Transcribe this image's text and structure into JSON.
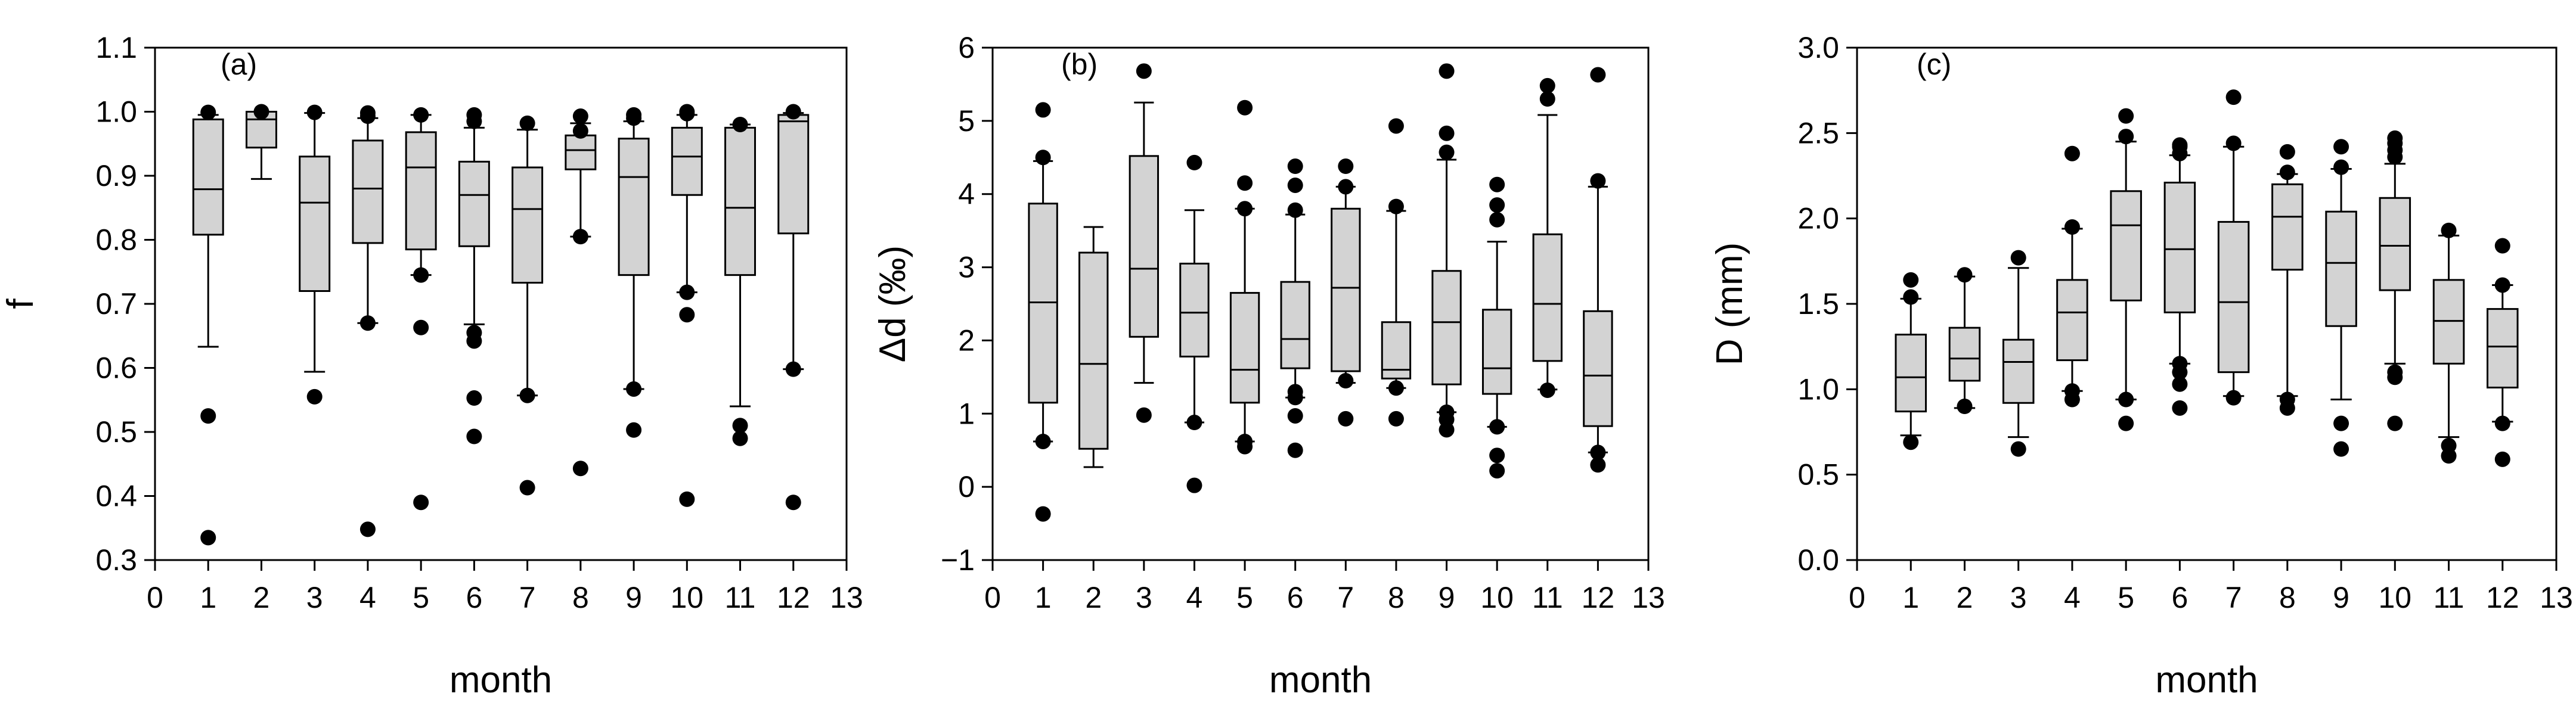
{
  "colors": {
    "box_fill": "#d3d3d3",
    "stroke": "#000000",
    "background": "#ffffff"
  },
  "chart_data": [
    {
      "type": "boxplot",
      "panel_label": "(a)",
      "xlabel": "month",
      "ylabel": "f",
      "xlim": [
        0,
        13
      ],
      "ylim": [
        0.3,
        1.1
      ],
      "x_ticks": [
        "0",
        "1",
        "2",
        "3",
        "4",
        "5",
        "6",
        "7",
        "8",
        "9",
        "10",
        "11",
        "12",
        "13"
      ],
      "y_ticks": [
        "0.3",
        "0.4",
        "0.5",
        "0.6",
        "0.7",
        "0.8",
        "0.9",
        "1.0",
        "1.1"
      ],
      "boxes": [
        {
          "x": 1,
          "whisker_low": 0.633,
          "q1": 0.808,
          "median": 0.879,
          "q3": 0.988,
          "whisker_high": 0.995,
          "outliers": [
            0.335,
            0.525,
            0.999
          ]
        },
        {
          "x": 2,
          "whisker_low": 0.895,
          "q1": 0.944,
          "median": 0.988,
          "q3": 1.0,
          "whisker_high": 1.0,
          "outliers": [
            1.0
          ]
        },
        {
          "x": 3,
          "whisker_low": 0.594,
          "q1": 0.72,
          "median": 0.858,
          "q3": 0.93,
          "whisker_high": 0.998,
          "outliers": [
            0.555,
            0.999
          ]
        },
        {
          "x": 4,
          "whisker_low": 0.67,
          "q1": 0.795,
          "median": 0.88,
          "q3": 0.955,
          "whisker_high": 0.99,
          "outliers": [
            0.348,
            0.67,
            0.993,
            0.998
          ]
        },
        {
          "x": 5,
          "whisker_low": 0.745,
          "q1": 0.785,
          "median": 0.913,
          "q3": 0.968,
          "whisker_high": 0.995,
          "outliers": [
            0.39,
            0.663,
            0.745,
            0.995
          ]
        },
        {
          "x": 6,
          "whisker_low": 0.668,
          "q1": 0.79,
          "median": 0.87,
          "q3": 0.922,
          "whisker_high": 0.975,
          "outliers": [
            0.493,
            0.553,
            0.642,
            0.655,
            0.985,
            0.995
          ]
        },
        {
          "x": 7,
          "whisker_low": 0.557,
          "q1": 0.733,
          "median": 0.848,
          "q3": 0.913,
          "whisker_high": 0.972,
          "outliers": [
            0.413,
            0.557,
            0.982
          ]
        },
        {
          "x": 8,
          "whisker_low": 0.805,
          "q1": 0.91,
          "median": 0.94,
          "q3": 0.963,
          "whisker_high": 0.982,
          "outliers": [
            0.443,
            0.805,
            0.97,
            0.993
          ]
        },
        {
          "x": 9,
          "whisker_low": 0.567,
          "q1": 0.745,
          "median": 0.898,
          "q3": 0.958,
          "whisker_high": 0.985,
          "outliers": [
            0.503,
            0.567,
            0.99,
            0.995
          ]
        },
        {
          "x": 10,
          "whisker_low": 0.718,
          "q1": 0.87,
          "median": 0.93,
          "q3": 0.975,
          "whisker_high": 0.995,
          "outliers": [
            0.395,
            0.683,
            0.718,
            0.997,
            1.0
          ]
        },
        {
          "x": 11,
          "whisker_low": 0.54,
          "q1": 0.745,
          "median": 0.85,
          "q3": 0.975,
          "whisker_high": 0.98,
          "outliers": [
            0.49,
            0.51,
            0.98
          ]
        },
        {
          "x": 12,
          "whisker_low": 0.598,
          "q1": 0.81,
          "median": 0.985,
          "q3": 0.995,
          "whisker_high": 0.998,
          "outliers": [
            0.39,
            0.598,
            1.0
          ]
        }
      ]
    },
    {
      "type": "boxplot",
      "panel_label": "(b)",
      "xlabel": "month",
      "ylabel": "Δd (‰)",
      "xlim": [
        0,
        13
      ],
      "ylim": [
        -1,
        6
      ],
      "x_ticks": [
        "0",
        "1",
        "2",
        "3",
        "4",
        "5",
        "6",
        "7",
        "8",
        "9",
        "10",
        "11",
        "12",
        "13"
      ],
      "y_ticks": [
        "−1",
        "0",
        "1",
        "2",
        "3",
        "4",
        "5",
        "6"
      ],
      "boxes": [
        {
          "x": 1,
          "whisker_low": 0.62,
          "q1": 1.15,
          "median": 2.52,
          "q3": 3.87,
          "whisker_high": 4.45,
          "outliers": [
            -0.37,
            0.62,
            4.5,
            5.15
          ]
        },
        {
          "x": 2,
          "whisker_low": 0.27,
          "q1": 0.52,
          "median": 1.68,
          "q3": 3.2,
          "whisker_high": 3.55,
          "outliers": []
        },
        {
          "x": 3,
          "whisker_low": 1.42,
          "q1": 2.05,
          "median": 2.98,
          "q3": 4.52,
          "whisker_high": 5.25,
          "outliers": [
            0.98,
            5.68
          ]
        },
        {
          "x": 4,
          "whisker_low": 0.88,
          "q1": 1.78,
          "median": 2.38,
          "q3": 3.05,
          "whisker_high": 3.78,
          "outliers": [
            0.02,
            0.88,
            4.43
          ]
        },
        {
          "x": 5,
          "whisker_low": 0.62,
          "q1": 1.15,
          "median": 1.6,
          "q3": 2.65,
          "whisker_high": 3.8,
          "outliers": [
            0.55,
            0.62,
            3.8,
            4.15,
            5.18
          ]
        },
        {
          "x": 6,
          "whisker_low": 1.22,
          "q1": 1.62,
          "median": 2.02,
          "q3": 2.8,
          "whisker_high": 3.72,
          "outliers": [
            0.5,
            0.97,
            1.22,
            1.3,
            3.78,
            4.12,
            4.38
          ]
        },
        {
          "x": 7,
          "whisker_low": 1.42,
          "q1": 1.58,
          "median": 2.72,
          "q3": 3.8,
          "whisker_high": 4.1,
          "outliers": [
            0.93,
            1.45,
            4.1,
            4.38
          ]
        },
        {
          "x": 8,
          "whisker_low": 1.35,
          "q1": 1.48,
          "median": 1.6,
          "q3": 2.25,
          "whisker_high": 3.77,
          "outliers": [
            0.93,
            1.35,
            3.83,
            4.93
          ]
        },
        {
          "x": 9,
          "whisker_low": 1.02,
          "q1": 1.4,
          "median": 2.25,
          "q3": 2.95,
          "whisker_high": 4.47,
          "outliers": [
            0.78,
            0.92,
            1.02,
            4.57,
            4.83,
            5.68
          ]
        },
        {
          "x": 10,
          "whisker_low": 0.82,
          "q1": 1.27,
          "median": 1.62,
          "q3": 2.42,
          "whisker_high": 3.35,
          "outliers": [
            0.22,
            0.43,
            0.82,
            3.65,
            3.85,
            4.13
          ]
        },
        {
          "x": 11,
          "whisker_low": 1.33,
          "q1": 1.72,
          "median": 2.5,
          "q3": 3.45,
          "whisker_high": 5.08,
          "outliers": [
            1.32,
            5.3,
            5.48
          ]
        },
        {
          "x": 12,
          "whisker_low": 0.47,
          "q1": 0.83,
          "median": 1.52,
          "q3": 2.4,
          "whisker_high": 4.1,
          "outliers": [
            0.3,
            0.47,
            4.18,
            5.63
          ]
        }
      ]
    },
    {
      "type": "boxplot",
      "panel_label": "(c)",
      "xlabel": "month",
      "ylabel": "D (mm)",
      "xlim": [
        0,
        13
      ],
      "ylim": [
        0,
        3
      ],
      "x_ticks": [
        "0",
        "1",
        "2",
        "3",
        "4",
        "5",
        "6",
        "7",
        "8",
        "9",
        "10",
        "11",
        "12",
        "13"
      ],
      "y_ticks": [
        "0.0",
        "0.5",
        "1.0",
        "1.5",
        "2.0",
        "2.5",
        "3.0"
      ],
      "boxes": [
        {
          "x": 1,
          "whisker_low": 0.73,
          "q1": 0.87,
          "median": 1.07,
          "q3": 1.32,
          "whisker_high": 1.53,
          "outliers": [
            0.69,
            1.54,
            1.64
          ]
        },
        {
          "x": 2,
          "whisker_low": 0.89,
          "q1": 1.05,
          "median": 1.18,
          "q3": 1.36,
          "whisker_high": 1.66,
          "outliers": [
            0.9,
            1.67
          ]
        },
        {
          "x": 3,
          "whisker_low": 0.72,
          "q1": 0.92,
          "median": 1.16,
          "q3": 1.29,
          "whisker_high": 1.71,
          "outliers": [
            0.65,
            1.77
          ]
        },
        {
          "x": 4,
          "whisker_low": 0.99,
          "q1": 1.17,
          "median": 1.45,
          "q3": 1.64,
          "whisker_high": 1.94,
          "outliers": [
            0.94,
            0.99,
            1.95,
            2.38
          ]
        },
        {
          "x": 5,
          "whisker_low": 0.94,
          "q1": 1.52,
          "median": 1.96,
          "q3": 2.16,
          "whisker_high": 2.45,
          "outliers": [
            0.8,
            0.94,
            2.48,
            2.6
          ]
        },
        {
          "x": 6,
          "whisker_low": 1.15,
          "q1": 1.45,
          "median": 1.82,
          "q3": 2.21,
          "whisker_high": 2.37,
          "outliers": [
            0.89,
            1.03,
            1.1,
            1.15,
            2.38,
            2.42,
            2.43
          ]
        },
        {
          "x": 7,
          "whisker_low": 0.96,
          "q1": 1.1,
          "median": 1.51,
          "q3": 1.98,
          "whisker_high": 2.42,
          "outliers": [
            0.95,
            2.44,
            2.71
          ]
        },
        {
          "x": 8,
          "whisker_low": 0.96,
          "q1": 1.7,
          "median": 2.01,
          "q3": 2.2,
          "whisker_high": 2.26,
          "outliers": [
            0.89,
            0.94,
            2.27,
            2.39
          ]
        },
        {
          "x": 9,
          "whisker_low": 0.94,
          "q1": 1.37,
          "median": 1.74,
          "q3": 2.04,
          "whisker_high": 2.29,
          "outliers": [
            0.65,
            0.8,
            2.3,
            2.42
          ]
        },
        {
          "x": 10,
          "whisker_low": 1.15,
          "q1": 1.58,
          "median": 1.84,
          "q3": 2.12,
          "whisker_high": 2.32,
          "outliers": [
            0.8,
            1.07,
            1.1,
            2.36,
            2.4,
            2.44,
            2.47
          ]
        },
        {
          "x": 11,
          "whisker_low": 0.72,
          "q1": 1.15,
          "median": 1.4,
          "q3": 1.64,
          "whisker_high": 1.9,
          "outliers": [
            0.61,
            0.67,
            1.93
          ]
        },
        {
          "x": 12,
          "whisker_low": 0.81,
          "q1": 1.01,
          "median": 1.25,
          "q3": 1.47,
          "whisker_high": 1.61,
          "outliers": [
            0.59,
            0.8,
            1.61,
            1.84
          ]
        }
      ]
    }
  ]
}
